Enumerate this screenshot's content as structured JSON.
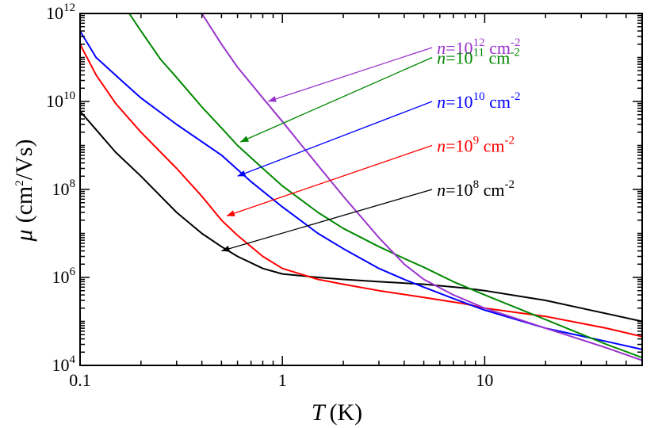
{
  "chart_data": {
    "type": "line",
    "xscale": "log",
    "yscale": "log",
    "xlim": [
      0.1,
      60
    ],
    "ylim": [
      10000,
      1000000000000
    ],
    "grid": false,
    "xlabel": {
      "symbol": "T",
      "unit": "(K)"
    },
    "ylabel": {
      "symbol": "μ",
      "unit_pre": "(cm",
      "unit_sup": "2",
      "unit_post": "/Vs)"
    },
    "xticks": [
      {
        "value": 0.1,
        "label": "0.1"
      },
      {
        "value": 1,
        "label": "1"
      },
      {
        "value": 10,
        "label": "10"
      }
    ],
    "yticks": [
      {
        "value": 10000,
        "base": "10",
        "exp": "4"
      },
      {
        "value": 1000000,
        "base": "10",
        "exp": "6"
      },
      {
        "value": 100000000,
        "base": "10",
        "exp": "8"
      },
      {
        "value": 10000000000,
        "base": "10",
        "exp": "10"
      },
      {
        "value": 1000000000000,
        "base": "10",
        "exp": "12"
      }
    ],
    "series": [
      {
        "name": "n=10^8 cm^-2",
        "color": "#000000",
        "legend": {
          "pre": "n",
          "mid": "=10",
          "exp": "8",
          "unit": " cm",
          "unit_exp": "-2"
        },
        "arrow_to": [
          0.5,
          4000000
        ],
        "legend_anchor_x": 5.5,
        "legend_anchor_y": 100000000,
        "x": [
          0.1,
          0.15,
          0.2,
          0.3,
          0.4,
          0.5,
          0.6,
          0.8,
          1,
          1.5,
          2,
          3,
          5,
          8,
          10,
          20,
          30,
          40,
          60
        ],
        "y": [
          6000000000,
          700000000,
          200000000,
          30000000,
          10000000,
          5000000,
          3000000,
          1600000,
          1200000,
          1000000,
          900000,
          800000,
          700000,
          570000,
          500000,
          300000,
          200000,
          150000,
          100000
        ]
      },
      {
        "name": "n=10^9 cm^-2",
        "color": "#ff0000",
        "legend": {
          "pre": "n",
          "mid": "=10",
          "exp": "9",
          "unit": " cm",
          "unit_exp": "-2"
        },
        "arrow_to": [
          0.53,
          25000000
        ],
        "legend_anchor_x": 5.5,
        "legend_anchor_y": 1000000000,
        "x": [
          0.1,
          0.12,
          0.15,
          0.2,
          0.3,
          0.4,
          0.5,
          0.6,
          0.8,
          1,
          1.5,
          2,
          3,
          5,
          8,
          10,
          20,
          40,
          60
        ],
        "y": [
          200000000000,
          40000000000,
          9000000000,
          2000000000,
          300000000,
          70000000,
          20000000,
          9000000,
          3000000,
          1600000,
          900000,
          700000,
          500000,
          350000,
          250000,
          200000,
          130000,
          70000,
          45000
        ]
      },
      {
        "name": "n=10^10 cm^-2",
        "color": "#0000ff",
        "legend": {
          "pre": "n",
          "mid": "=10",
          "exp": "10",
          "unit": " cm",
          "unit_exp": "-2"
        },
        "arrow_to": [
          0.6,
          200000000
        ],
        "legend_anchor_x": 5.5,
        "legend_anchor_y": 10000000000,
        "x": [
          0.1,
          0.12,
          0.16,
          0.2,
          0.3,
          0.5,
          0.7,
          1,
          1.5,
          2,
          3,
          4,
          5,
          7,
          10,
          20,
          40,
          60
        ],
        "y": [
          400000000000,
          100000000000,
          30000000000,
          12000000000,
          3000000000,
          600000000,
          150000000,
          40000000,
          10000000,
          4500000,
          1600000,
          900000,
          600000,
          330000,
          180000,
          70000,
          35000,
          23000
        ]
      },
      {
        "name": "n=10^11 cm^-2",
        "color": "#008800",
        "legend": {
          "pre": "n",
          "mid": "=10",
          "exp": "11",
          "unit": " cm",
          "unit_exp": "-2"
        },
        "arrow_to": [
          0.62,
          1200000000
        ],
        "legend_anchor_x": 5.5,
        "legend_anchor_y": 100000000000,
        "x": [
          0.175,
          0.2,
          0.25,
          0.3,
          0.4,
          0.5,
          0.6,
          0.8,
          1,
          1.5,
          2,
          3,
          4,
          5,
          7,
          10,
          20,
          40,
          60
        ],
        "y": [
          1000000000000,
          400000000000,
          90000000000,
          35000000000,
          7500000000,
          2500000000,
          1000000000,
          300000000,
          120000000,
          30000000,
          13000000,
          5000000,
          2700000,
          1700000,
          800000,
          400000,
          110000,
          30000,
          15000
        ]
      },
      {
        "name": "n=10^12 cm^-2",
        "color": "#9933cc",
        "legend": {
          "pre": "n",
          "mid": "=10",
          "exp": "12",
          "unit": " cm",
          "unit_exp": "-2"
        },
        "arrow_to": [
          0.85,
          10000000000
        ],
        "legend_anchor_x": 5.5,
        "legend_anchor_y": 1000000000000,
        "x": [
          0.4,
          0.5,
          0.6,
          0.8,
          1,
          1.5,
          2,
          3,
          4,
          5,
          7,
          10,
          20,
          40,
          60
        ],
        "y": [
          1000000000000,
          200000000000,
          60000000000,
          12000000000,
          3500000000,
          350000000,
          70000000,
          8000000,
          2000000,
          900000,
          400000,
          200000,
          70000,
          25000,
          13000
        ]
      }
    ]
  }
}
